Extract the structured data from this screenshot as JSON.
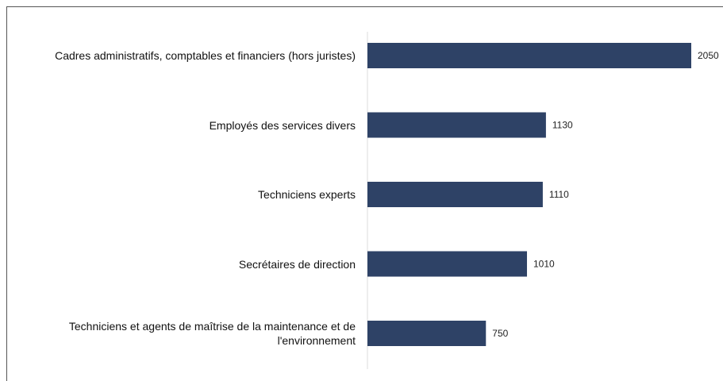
{
  "chart_data": {
    "type": "bar",
    "orientation": "horizontal",
    "categories": [
      "Cadres administratifs, comptables et financiers (hors juristes)",
      "Employés des services divers",
      "Techniciens experts",
      "Secrétaires de direction",
      "Techniciens et agents de maîtrise de la maintenance et de l'environnement"
    ],
    "values": [
      2050,
      1130,
      1110,
      1010,
      750
    ],
    "color": "#2e4266"
  }
}
